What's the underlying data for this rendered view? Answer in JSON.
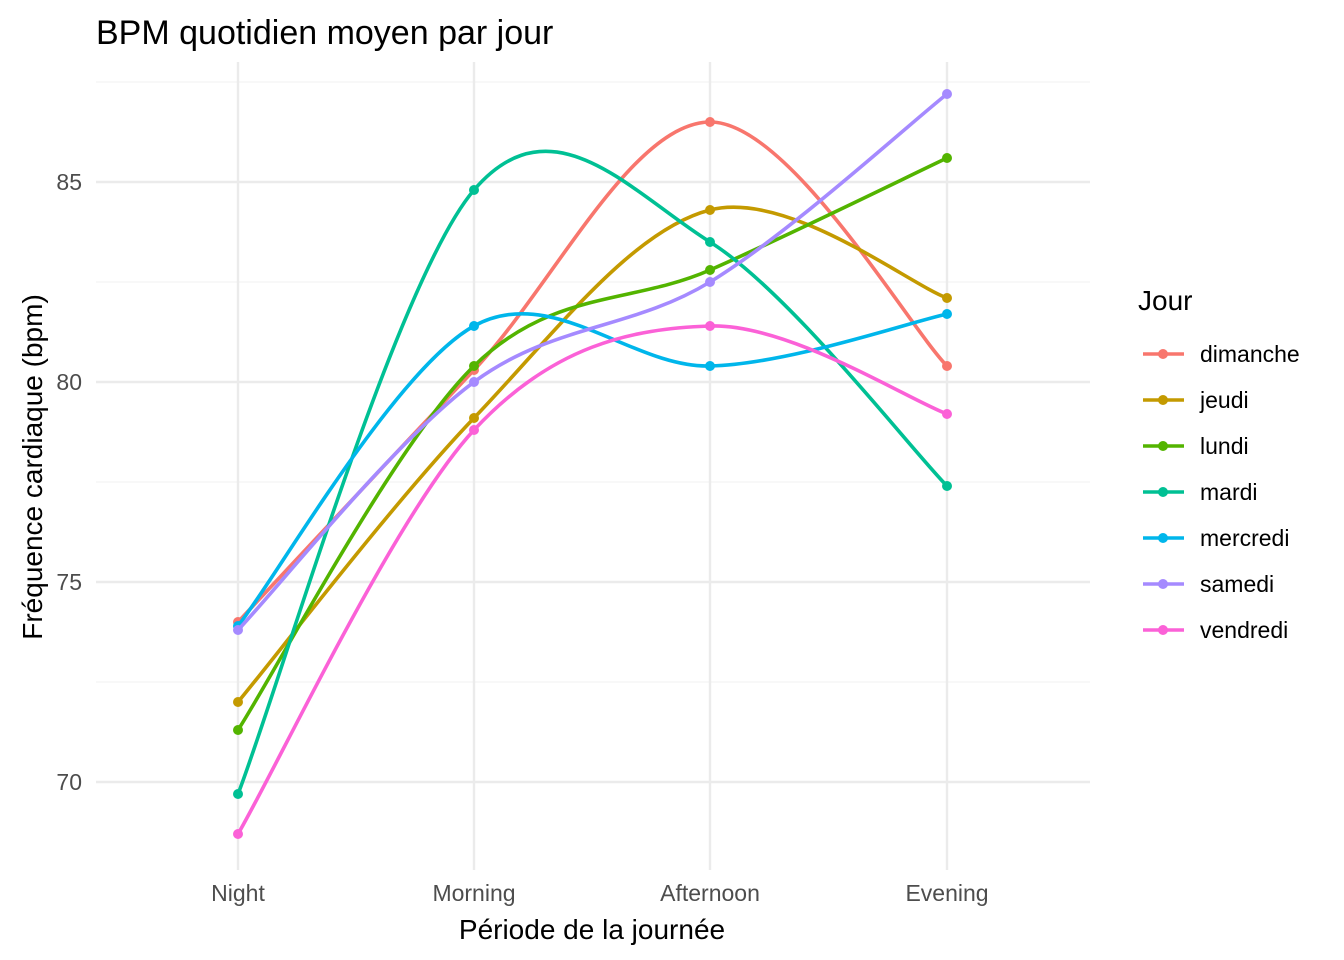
{
  "chart_data": {
    "type": "line",
    "title": "BPM quotidien moyen par jour",
    "xlabel": "Période de la journée",
    "ylabel": "Fréquence cardiaque (bpm)",
    "categories": [
      "Night",
      "Morning",
      "Afternoon",
      "Evening"
    ],
    "ylim": [
      67.8,
      88.0
    ],
    "yticks": [
      70,
      75,
      80,
      85
    ],
    "grid": true,
    "smoothed": true,
    "legend": {
      "title": "Jour",
      "position": "right"
    },
    "series": [
      {
        "name": "dimanche",
        "color": "#F8766D",
        "values": [
          74.0,
          80.3,
          86.5,
          80.4
        ]
      },
      {
        "name": "jeudi",
        "color": "#C49A00",
        "values": [
          72.0,
          79.1,
          84.3,
          82.1
        ]
      },
      {
        "name": "lundi",
        "color": "#53B400",
        "values": [
          71.3,
          80.4,
          82.8,
          85.6
        ]
      },
      {
        "name": "mardi",
        "color": "#00C094",
        "values": [
          69.7,
          84.8,
          83.5,
          77.4
        ]
      },
      {
        "name": "mercredi",
        "color": "#00B6EB",
        "values": [
          73.9,
          81.4,
          80.4,
          81.7
        ]
      },
      {
        "name": "samedi",
        "color": "#A58AFF",
        "values": [
          73.8,
          80.0,
          82.5,
          87.2
        ]
      },
      {
        "name": "vendredi",
        "color": "#FB61D7",
        "values": [
          68.7,
          78.8,
          81.4,
          79.2
        ]
      }
    ]
  }
}
